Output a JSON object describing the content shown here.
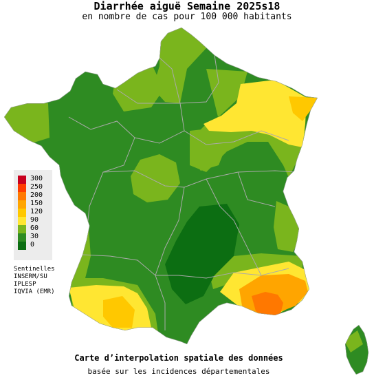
{
  "header": {
    "title": "Diarrhée aiguë Semaine 2025s18",
    "subtitle": "en nombre de cas pour 100 000 habitants"
  },
  "legend": {
    "items": [
      {
        "label": "300",
        "color": "#c8001e"
      },
      {
        "label": "250",
        "color": "#ff3c00"
      },
      {
        "label": "200",
        "color": "#ff7800"
      },
      {
        "label": "150",
        "color": "#ffa500"
      },
      {
        "label": "120",
        "color": "#ffc800"
      },
      {
        "label": "90",
        "color": "#ffe632"
      },
      {
        "label": "60",
        "color": "#7ab51d"
      },
      {
        "label": "30",
        "color": "#2e8b22"
      },
      {
        "label": "0",
        "color": "#0c6e12"
      }
    ]
  },
  "sources": {
    "heading": "Sentinelles",
    "lines": [
      "INSERM/SU",
      "IPLESP",
      "IQVIA (EMR)"
    ]
  },
  "footer": {
    "caption": "Carte d’interpolation spatiale des données",
    "subcaption": "basée sur les incidences départementales"
  },
  "colors": {
    "very_low": "#0c6e12",
    "low": "#2e8b22",
    "moderate": "#7ab51d",
    "yellow": "#ffe632",
    "gold": "#ffc800",
    "orange": "#ffa500",
    "deep_orange": "#ff7800",
    "borders": "#aaaaaa"
  }
}
